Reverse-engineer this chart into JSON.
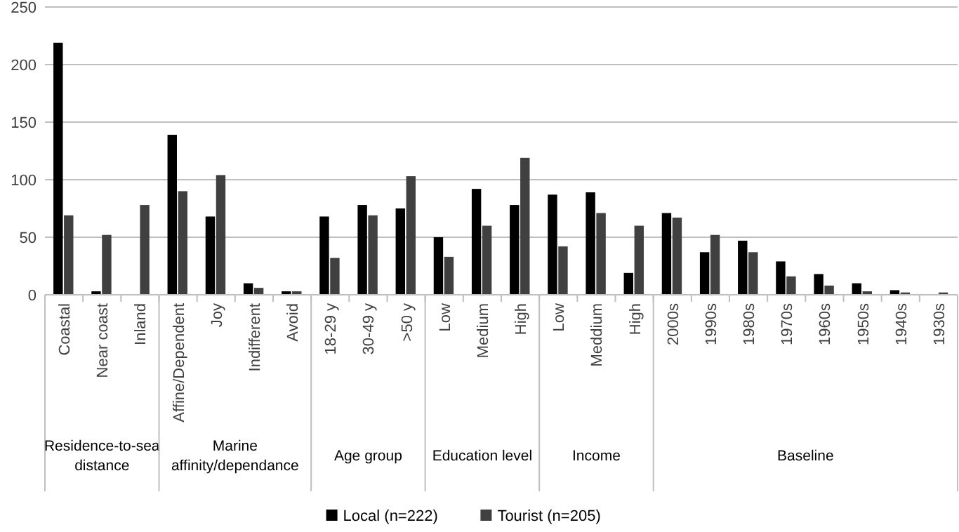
{
  "chart_data": {
    "type": "bar",
    "categories": [
      "Coastal",
      "Near coast",
      "Inland",
      "Affine/Dependent",
      "Joy",
      "Indifferent",
      "Avoid",
      "18-29 y",
      "30-49 y",
      ">50 y",
      "Low",
      "Medium",
      "High",
      "Low",
      "Meddium",
      "High",
      "2000s",
      "1990s",
      "1980s",
      "1970s",
      "1960s",
      "1950s",
      "1940s",
      "1930s"
    ],
    "series": [
      {
        "name": "Local (n=222)",
        "color": "#000000",
        "values": [
          219,
          3,
          0,
          139,
          68,
          10,
          3,
          68,
          78,
          75,
          50,
          92,
          78,
          87,
          89,
          19,
          71,
          37,
          47,
          29,
          18,
          10,
          4,
          0
        ]
      },
      {
        "name": "Tourist (n=205)",
        "color": "#404040",
        "values": [
          69,
          52,
          78,
          90,
          104,
          6,
          3,
          32,
          69,
          103,
          33,
          60,
          119,
          42,
          71,
          60,
          67,
          52,
          37,
          16,
          8,
          3,
          2,
          2
        ]
      }
    ],
    "annotations": [
      "Residence-to-sea distance",
      "Marine affinity/dependance",
      "Age group",
      "Education level",
      "Income",
      "Baseline"
    ],
    "ylim": [
      0,
      250
    ],
    "yticks": [
      0,
      50,
      100,
      150,
      200,
      250
    ],
    "grid": "y",
    "legend": "bottom"
  }
}
